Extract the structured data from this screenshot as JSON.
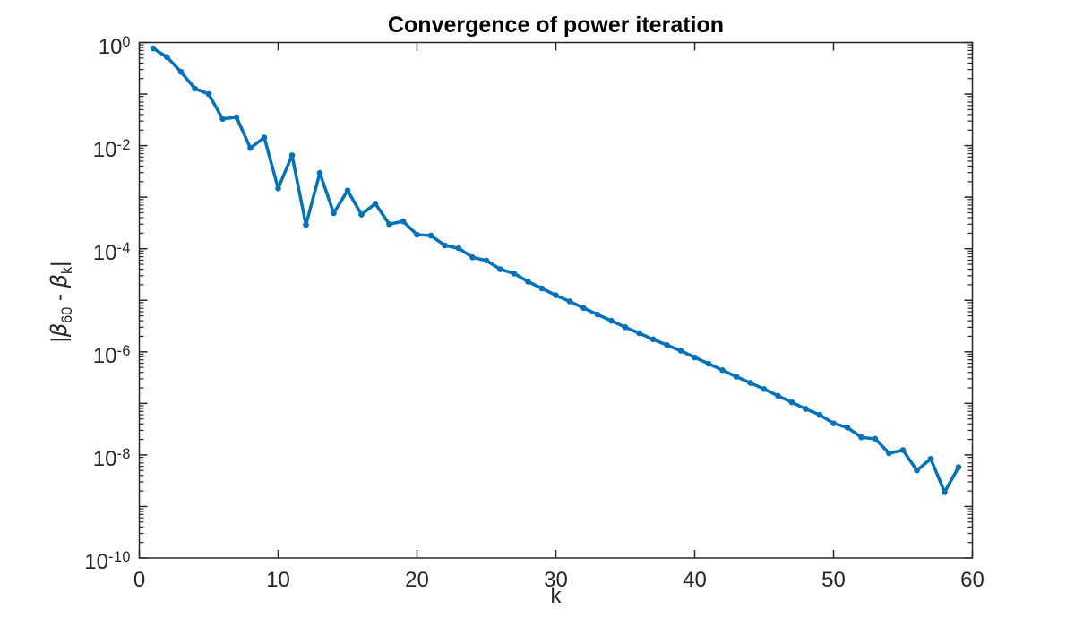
{
  "figure": {
    "title": "Convergence of power iteration",
    "xlabel": "k",
    "ylabel": {
      "open_bar": "|",
      "beta1": "β",
      "sub1": "60",
      "minus": " - ",
      "beta2": "β",
      "sub2": "k",
      "close_bar": "|"
    }
  },
  "chart_data": {
    "type": "line",
    "title": "Convergence of power iteration",
    "xlabel": "k",
    "ylabel": "|beta_60 - beta_k|",
    "y_scale": "log",
    "xlim": [
      0,
      60
    ],
    "x_ticks": [
      0,
      10,
      20,
      30,
      40,
      50,
      60
    ],
    "ylim_exponents": [
      0,
      -10
    ],
    "y_tick_exponents": [
      0,
      -2,
      -4,
      -6,
      -8,
      -10
    ],
    "minor_tick_multiples": [
      2,
      3,
      4,
      5,
      6,
      7,
      8,
      9
    ],
    "grid": false,
    "legend": null,
    "line_color": "#0072BD",
    "axis_color": "#262626",
    "marker": "point",
    "x": [
      1,
      2,
      3,
      4,
      5,
      6,
      7,
      8,
      9,
      10,
      11,
      12,
      13,
      14,
      15,
      16,
      17,
      18,
      19,
      20,
      21,
      22,
      23,
      24,
      25,
      26,
      27,
      28,
      29,
      30,
      31,
      32,
      33,
      34,
      35,
      36,
      37,
      38,
      39,
      40,
      41,
      42,
      43,
      44,
      45,
      46,
      47,
      48,
      49,
      50,
      51,
      52,
      53,
      54,
      55,
      56,
      57,
      58,
      59
    ],
    "y": [
      0.77,
      0.52,
      0.27,
      0.128,
      0.1,
      0.033,
      0.0355,
      0.009,
      0.0144,
      0.00148,
      0.0065,
      0.00029,
      0.00295,
      0.00049,
      0.00135,
      0.00046,
      0.00075,
      0.0003,
      0.00034,
      0.000187,
      0.00018,
      0.000116,
      0.000102,
      6.8e-05,
      5.9e-05,
      4e-05,
      3.3e-05,
      2.3e-05,
      1.7e-05,
      1.25e-05,
      9.5e-06,
      7.1e-06,
      5.3e-06,
      4e-06,
      3e-06,
      2.3e-06,
      1.75e-06,
      1.35e-06,
      1.05e-06,
      7.8e-07,
      5.9e-07,
      4.4e-07,
      3.3e-07,
      2.5e-07,
      1.9e-07,
      1.4e-07,
      1.05e-07,
      7.8e-08,
      6e-08,
      4.1e-08,
      3.4e-08,
      2.2e-08,
      2.05e-08,
      1.08e-08,
      1.24e-08,
      5e-09,
      8.4e-09,
      1.9e-09,
      5.8e-09
    ]
  }
}
